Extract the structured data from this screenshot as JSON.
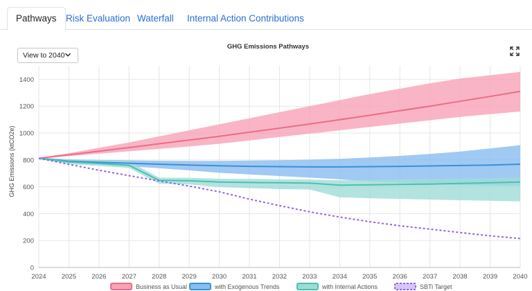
{
  "tabs": [
    {
      "label": "Pathways",
      "active": true
    },
    {
      "label": "Risk Evaluation",
      "active": false
    },
    {
      "label": "Waterfall",
      "active": false
    },
    {
      "label": "Internal Action Contributions",
      "active": false
    }
  ],
  "controls": {
    "view_select": "View to 2040",
    "expand_icon": "expand-icon"
  },
  "chart_data": {
    "type": "line",
    "title": "GHG Emissions Pathways",
    "xlabel": "",
    "ylabel": "GHG Emissions (ktCO2e)",
    "x": [
      2024,
      2025,
      2026,
      2027,
      2028,
      2029,
      2030,
      2031,
      2032,
      2033,
      2034,
      2035,
      2036,
      2037,
      2038,
      2039,
      2040
    ],
    "xlim": [
      2024,
      2040
    ],
    "ylim": [
      0,
      1500
    ],
    "yticks": [
      0,
      200,
      400,
      600,
      800,
      1000,
      1200,
      1400
    ],
    "grid": true,
    "legend": "bottom",
    "series": [
      {
        "name": "Business as Usual",
        "color": "#ee6b85",
        "band_color": "#f8a3b6",
        "values": [
          812,
          838,
          865,
          892,
          920,
          948,
          976,
          1006,
          1036,
          1067,
          1099,
          1132,
          1166,
          1200,
          1236,
          1272,
          1310
        ],
        "upper": [
          815,
          850,
          890,
          930,
          975,
          1020,
          1065,
          1110,
          1155,
          1200,
          1245,
          1290,
          1330,
          1370,
          1405,
          1430,
          1455
        ],
        "lower": [
          810,
          828,
          846,
          864,
          882,
          900,
          920,
          945,
          970,
          995,
          1020,
          1045,
          1070,
          1095,
          1120,
          1140,
          1160
        ]
      },
      {
        "name": "with Exogenous Trends",
        "color": "#3a8fd8",
        "band_color": "#88bdf0",
        "values": [
          812,
          790,
          782,
          775,
          768,
          762,
          756,
          752,
          750,
          748,
          748,
          750,
          752,
          755,
          758,
          762,
          768
        ],
        "upper": [
          815,
          805,
          800,
          797,
          794,
          793,
          793,
          795,
          798,
          802,
          808,
          818,
          830,
          845,
          862,
          885,
          910
        ],
        "lower": [
          810,
          782,
          768,
          752,
          738,
          722,
          704,
          692,
          680,
          668,
          655,
          640,
          630,
          620,
          613,
          610,
          605
        ]
      },
      {
        "name": "with Internal Actions",
        "color": "#4cbfb4",
        "band_color": "#9fdcd7",
        "values": [
          812,
          785,
          773,
          760,
          648,
          645,
          635,
          632,
          630,
          628,
          612,
          615,
          618,
          620,
          625,
          630,
          635
        ],
        "upper": [
          815,
          805,
          797,
          788,
          668,
          667,
          660,
          658,
          656,
          654,
          648,
          652,
          655,
          658,
          661,
          664,
          668
        ],
        "lower": [
          810,
          768,
          755,
          740,
          622,
          618,
          598,
          590,
          583,
          580,
          522,
          515,
          510,
          505,
          500,
          496,
          492
        ]
      },
      {
        "name": "SBTi Target",
        "color": "#9162e4",
        "dashed": true,
        "values": [
          812,
          767,
          723,
          683,
          644,
          605,
          563,
          508,
          460,
          414,
          375,
          340,
          310,
          285,
          260,
          235,
          215
        ]
      }
    ]
  }
}
